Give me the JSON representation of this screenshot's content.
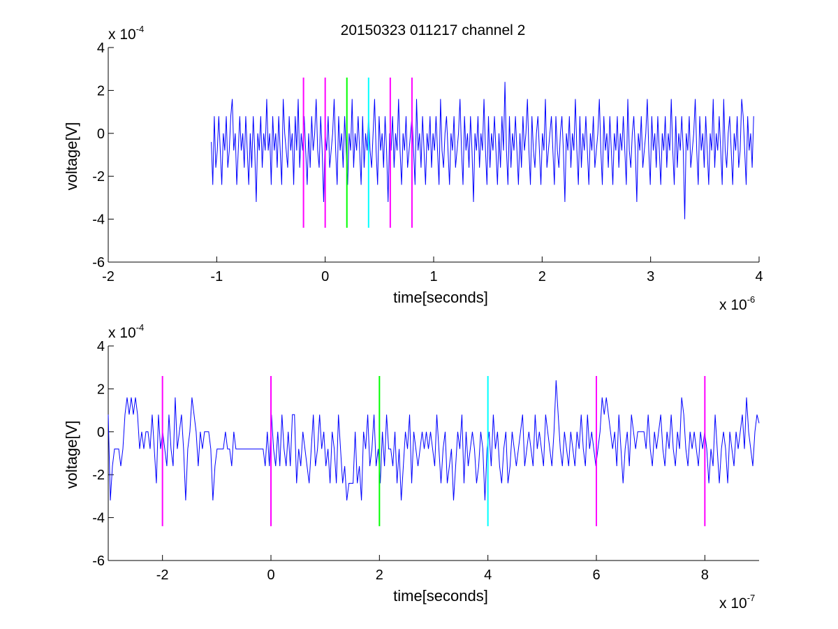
{
  "figure": {
    "title": "20150323 011217 channel 2"
  },
  "chart_data": [
    {
      "type": "line",
      "title": "20150323 011217 channel 2",
      "xlabel": "time[seconds]",
      "ylabel": "voltage[V]",
      "x_multiplier": "x 10",
      "x_multiplier_exp": "-6",
      "y_multiplier": "x 10",
      "y_multiplier_exp": "-4",
      "xlim": [
        -2,
        4
      ],
      "ylim": [
        -6,
        4
      ],
      "x_ticks": [
        -2,
        -1,
        0,
        1,
        2,
        3,
        4
      ],
      "y_ticks": [
        -6,
        -4,
        -2,
        0,
        2,
        4
      ],
      "grid": false,
      "trace_color": "#0000ff",
      "trace_x_range": [
        -1.05,
        3.95
      ],
      "trace_values": [
        -0.4,
        -2.4,
        0.8,
        -1.6,
        -0.8,
        0.8,
        -0.8,
        -2.4,
        0,
        -0.8,
        0.8,
        -1.6,
        -0.8,
        0.8,
        1.6,
        -0.8,
        0,
        -2.4,
        -0.8,
        0.8,
        -0.8,
        0,
        -1.6,
        0.8,
        -0.8,
        -2.4,
        0,
        -1.6,
        0.8,
        -0.8,
        -3.2,
        0,
        -0.8,
        0.8,
        -1.6,
        0,
        -0.8,
        1.6,
        -0.8,
        0,
        -2.4,
        0.8,
        -0.8,
        0,
        -1.6,
        0.8,
        -0.8,
        -2.4,
        1.6,
        0,
        -0.8,
        -1.6,
        0.8,
        -0.8,
        0,
        -2.4,
        0.8,
        -0.8,
        1.6,
        -1.6,
        0,
        -0.8,
        0.8,
        -0.8,
        -2.4,
        0,
        -1.6,
        0.8,
        -0.8,
        0,
        1.6,
        -0.8,
        -1.6,
        0.8,
        -0.8,
        -3.2,
        0,
        -0.8,
        0.8,
        -1.6,
        -0.8,
        0,
        1.6,
        -0.8,
        -2.4,
        0.8,
        -0.8,
        0,
        -1.6,
        0.8,
        -0.8,
        -2.4,
        0,
        -0.8,
        1.6,
        -1.6,
        0,
        -0.8,
        0.8,
        -0.8,
        -2.4,
        0.8,
        -1.6,
        0,
        -0.8,
        0.8,
        -0.8,
        -1.6,
        0,
        1.6,
        -0.8,
        -2.4,
        0.8,
        -0.8,
        0,
        -1.6,
        0.8,
        -0.8,
        -3.2,
        0,
        -0.8,
        0.8,
        -1.6,
        0,
        -0.8,
        1.6,
        -0.8,
        -2.4,
        0,
        -0.8,
        0.8,
        -1.6,
        -0.8,
        0,
        0.8,
        -0.8,
        -2.4,
        1.6,
        -0.8,
        0,
        -1.6,
        0.8,
        -0.8,
        -2.4,
        0,
        -0.8,
        0.8,
        -1.6,
        0,
        -0.8,
        0.8,
        -0.8,
        -2.4,
        1.6,
        -0.8,
        -1.6,
        0,
        0.8,
        -0.8,
        -2.4,
        0,
        -0.8,
        0.8,
        -1.6,
        -0.8,
        0,
        1.6,
        -0.8,
        -2.4,
        0.8,
        -0.8,
        0,
        -1.6,
        0.8,
        -0.8,
        -3.2,
        0,
        -0.8,
        0.8,
        -1.6,
        0,
        -0.8,
        1.6,
        -0.8,
        -2.4,
        0.8,
        -1.6,
        0,
        -0.8,
        0.8,
        -0.8,
        -2.4,
        0,
        -1.6,
        0.8,
        -0.8,
        2.4,
        -0.8,
        -2.4,
        0.8,
        -1.6,
        0,
        -0.8,
        0.8,
        -0.8,
        -2.4,
        0,
        -1.6,
        0.8,
        -0.8,
        0,
        1.6,
        -0.8,
        -2.4,
        0.8,
        -0.8,
        -1.6,
        0,
        0.8,
        -0.8,
        -2.4,
        0,
        -0.8,
        1.6,
        -1.6,
        -0.8,
        0,
        0.8,
        -0.8,
        -2.4,
        0.8,
        -0.8,
        -1.6,
        0,
        0.8,
        -0.8,
        -3.2,
        0,
        -0.8,
        0.8,
        -1.6,
        0,
        -0.8,
        1.6,
        -0.8,
        -2.4,
        0.8,
        -1.6,
        0,
        -0.8,
        0.8,
        -0.8,
        -2.4,
        0,
        -0.8,
        0.8,
        -1.6,
        -0.8,
        0,
        1.6,
        -0.8,
        -2.4,
        0.8,
        -0.8,
        0,
        -1.6,
        0.8,
        -0.8,
        -2.4,
        0,
        -0.8,
        0.8,
        -1.6,
        0,
        -0.8,
        0.8,
        -0.8,
        -2.4,
        1.6,
        -0.8,
        -1.6,
        0,
        0.8,
        -0.8,
        -3.2,
        0,
        -0.8,
        0.8,
        -1.6,
        -0.8,
        0,
        1.6,
        -0.8,
        -2.4,
        0.8,
        -0.8,
        0,
        -1.6,
        0.8,
        -0.8,
        -2.4,
        0,
        -0.8,
        0.8,
        -1.6,
        0,
        -0.8,
        1.6,
        -0.8,
        -2.4,
        0.8,
        -1.6,
        0,
        -0.8,
        0.8,
        -0.8,
        -4.0,
        0,
        -0.8,
        0.8,
        -1.6,
        -0.8,
        0,
        1.6,
        -0.8,
        -2.4,
        0.8,
        -0.8,
        0,
        -1.6,
        0.8,
        -0.8,
        -2.4,
        0,
        -0.8,
        1.6,
        -1.6,
        0,
        -0.8,
        0.8,
        -0.8,
        -2.4,
        1.6,
        -0.8,
        -1.6,
        0,
        0.8,
        -0.8,
        -2.4,
        0,
        -0.8,
        0.8,
        -1.6,
        -0.8,
        1.6,
        0.8,
        -0.8,
        -2.4,
        0.8,
        -0.8,
        0,
        -1.6,
        0.8
      ],
      "markers": [
        {
          "x": -0.2,
          "color": "#ff00ff"
        },
        {
          "x": 0.0,
          "color": "#ff00ff"
        },
        {
          "x": 0.2,
          "color": "#00ff00"
        },
        {
          "x": 0.4,
          "color": "#00ffff"
        },
        {
          "x": 0.6,
          "color": "#ff00ff"
        },
        {
          "x": 0.8,
          "color": "#ff00ff"
        }
      ],
      "marker_range": [
        -4.4,
        2.6
      ]
    },
    {
      "type": "line",
      "xlabel": "time[seconds]",
      "ylabel": "voltage[V]",
      "x_multiplier": "x 10",
      "x_multiplier_exp": "-7",
      "y_multiplier": "x 10",
      "y_multiplier_exp": "-4",
      "xlim": [
        -3,
        9
      ],
      "ylim": [
        -6,
        4
      ],
      "x_ticks": [
        -2,
        0,
        2,
        4,
        6,
        8
      ],
      "y_ticks": [
        -6,
        -4,
        -2,
        0,
        2,
        4
      ],
      "grid": false,
      "trace_color": "#0000ff",
      "trace_x_range": [
        -3,
        9
      ],
      "trace_values": [
        0.8,
        -3.2,
        -1.6,
        -0.8,
        -0.8,
        -0.8,
        -1.6,
        -0.8,
        0.8,
        1.6,
        0.8,
        1.6,
        0.8,
        1.6,
        0.8,
        -0.8,
        0,
        -0.8,
        0,
        0,
        -0.8,
        0.8,
        -0.8,
        -2.4,
        0.8,
        -0.8,
        0,
        -0.8,
        -1.6,
        0.8,
        -0.8,
        -1.6,
        1.6,
        -0.8,
        0,
        0.8,
        -0.8,
        -3.2,
        -0.8,
        0,
        1.6,
        0.8,
        0,
        -1.6,
        0,
        -0.8,
        0,
        0,
        0,
        -0.8,
        -3.2,
        -1.6,
        -0.8,
        -0.8,
        -0.8,
        -0.8,
        0,
        -0.8,
        -0.8,
        -1.6,
        0,
        -0.8,
        -0.8,
        -0.8,
        -0.8,
        -0.8,
        -0.8,
        -0.8,
        -0.8,
        -0.8,
        -0.8,
        -0.8,
        -0.8,
        -0.8,
        -0.8,
        -1.6,
        0,
        -1.6,
        0.8,
        -0.8,
        -1.6,
        0,
        -1.6,
        0.8,
        -0.8,
        -1.6,
        0,
        -1.6,
        0.8,
        0.8,
        -2.4,
        -0.8,
        -1.6,
        0,
        -0.8,
        -1.6,
        -2.4,
        -0.8,
        0.8,
        -1.6,
        -0.8,
        0.8,
        -0.8,
        0,
        -1.6,
        -0.8,
        -2.4,
        0,
        -0.8,
        -2.4,
        0.8,
        -0.8,
        -2.4,
        -1.6,
        -3.2,
        -2.4,
        -2.4,
        -2.4,
        0,
        -2.4,
        -1.6,
        -3.2,
        0,
        -0.8,
        0.8,
        -1.6,
        -0.8,
        0.8,
        -1.6,
        -0.8,
        -2.4,
        0,
        -1.6,
        0.8,
        -0.8,
        -0.8,
        -1.6,
        0,
        -2.4,
        -0.8,
        -3.2,
        -1.6,
        0,
        -0.8,
        0.8,
        -2.4,
        0,
        -0.8,
        -1.6,
        -0.8,
        0,
        -0.8,
        0,
        -0.8,
        0,
        -0.8,
        -1.6,
        0.8,
        -0.8,
        -2.4,
        -0.8,
        0,
        -2.4,
        -1.6,
        -0.8,
        -3.2,
        -1.6,
        0,
        -0.8,
        0.8,
        -2.4,
        0,
        -1.6,
        -0.8,
        0,
        -0.8,
        -2.4,
        -1.6,
        0,
        -0.8,
        -3.2,
        -0.8,
        0,
        -1.6,
        0.8,
        -0.8,
        0,
        -1.6,
        -2.4,
        -0.8,
        0,
        -2.4,
        -1.6,
        0,
        -0.8,
        -1.6,
        -0.8,
        0,
        0.8,
        -1.6,
        -0.8,
        0,
        -0.8,
        -1.6,
        0.8,
        -0.8,
        0,
        -0.8,
        -1.6,
        0.8,
        0,
        -0.8,
        -1.6,
        0,
        2.4,
        0.8,
        -0.8,
        -1.6,
        0,
        -0.8,
        -1.6,
        0,
        -0.8,
        -1.6,
        0,
        -0.8,
        0.8,
        -0.8,
        -1.6,
        0.8,
        -0.8,
        0,
        -0.8,
        -1.6,
        -0.8,
        0,
        1.6,
        0.8,
        1.6,
        0.8,
        0,
        -0.8,
        0,
        -1.6,
        0.8,
        -0.8,
        -2.4,
        -0.8,
        0,
        -1.6,
        0.8,
        0,
        -0.8,
        0,
        0,
        0,
        0,
        -0.8,
        0.8,
        -0.8,
        -1.6,
        0,
        -0.8,
        0,
        0.8,
        -0.8,
        -1.6,
        0,
        -0.8,
        0.8,
        -0.8,
        -1.6,
        0,
        -0.8,
        1.6,
        0.8,
        -0.8,
        -1.6,
        0,
        -0.8,
        0,
        -0.8,
        -1.6,
        0,
        -0.8,
        0,
        -0.8,
        -2.4,
        -0.8,
        -1.6,
        0.8,
        -0.8,
        -2.4,
        -0.8,
        0,
        -0.8,
        -2.4,
        0,
        -0.8,
        -1.6,
        0,
        -0.8,
        0,
        0.8,
        -0.8,
        1.6,
        0,
        -0.8,
        -1.6,
        0,
        0.8,
        0.4
      ],
      "markers": [
        {
          "x": -2,
          "color": "#ff00ff"
        },
        {
          "x": 0,
          "color": "#ff00ff"
        },
        {
          "x": 2,
          "color": "#00ff00"
        },
        {
          "x": 4,
          "color": "#00ffff"
        },
        {
          "x": 6,
          "color": "#ff00ff"
        },
        {
          "x": 8,
          "color": "#ff00ff"
        }
      ],
      "marker_range": [
        -4.4,
        2.6
      ]
    }
  ]
}
